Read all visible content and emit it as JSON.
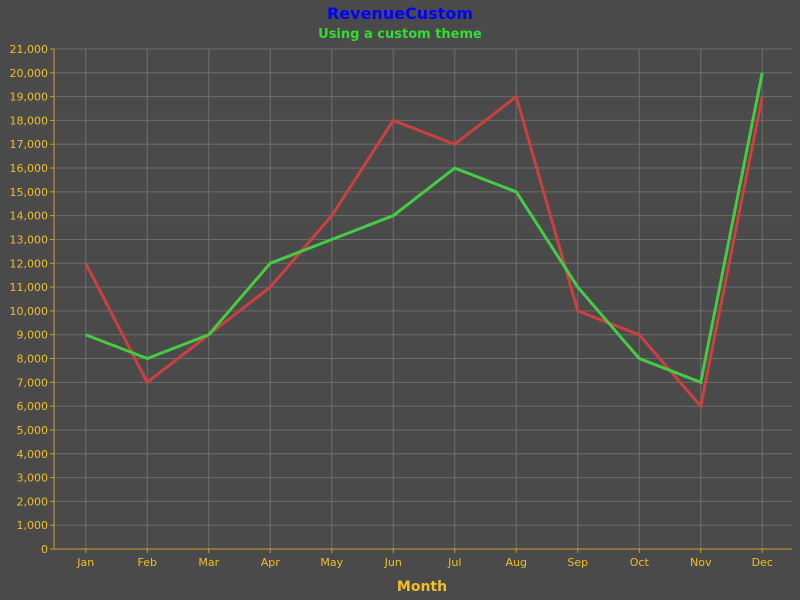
{
  "chart_data": {
    "type": "line",
    "title": "RevenueCustom",
    "subtitle": "Using a custom theme",
    "xlabel": "Month",
    "ylabel": "",
    "categories": [
      "Jan",
      "Feb",
      "Mar",
      "Apr",
      "May",
      "Jun",
      "Jul",
      "Aug",
      "Sep",
      "Oct",
      "Nov",
      "Dec"
    ],
    "ylim": [
      0,
      21000
    ],
    "yticks": [
      0,
      1000,
      2000,
      3000,
      4000,
      5000,
      6000,
      7000,
      8000,
      9000,
      10000,
      11000,
      12000,
      13000,
      14000,
      15000,
      16000,
      17000,
      18000,
      19000,
      20000,
      21000
    ],
    "grid": true,
    "legend": "none",
    "series": [
      {
        "color": "#cc4040",
        "values": [
          12000,
          7000,
          9000,
          11000,
          14000,
          18000,
          17000,
          19000,
          10000,
          9000,
          6000,
          19000
        ]
      },
      {
        "color": "#44cc44",
        "values": [
          9000,
          8000,
          9000,
          12000,
          13000,
          14000,
          16000,
          15000,
          11000,
          8000,
          7000,
          20000
        ]
      }
    ]
  }
}
